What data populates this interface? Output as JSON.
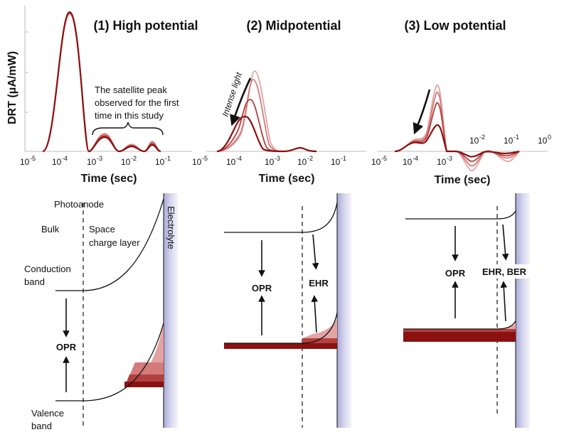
{
  "colors": {
    "dark": "#8b1010",
    "mid": "#b34040",
    "light": "#d47a7a",
    "lighter": "#e3a3a3",
    "electrolyte": "#b9b9dc",
    "ink": "#111111"
  },
  "panels": [
    {
      "title": "(1) High potential",
      "xlabel": "Time (sec)"
    },
    {
      "title": "(2) Midpotential",
      "xlabel": "Time (sec)"
    },
    {
      "title": "(3) Low potential",
      "xlabel": "Time (sec)"
    }
  ],
  "ylabel": "DRT (μA/mW)",
  "ticks": {
    "p1": [
      "-5",
      "-4",
      "-3",
      "-2",
      "-1"
    ],
    "p2": [
      "-5",
      "-4",
      "-3",
      "-2",
      "-1"
    ],
    "p3_low": [
      "-5",
      "-4",
      "-3"
    ],
    "p3_high": [
      "-2",
      "-1",
      "0"
    ]
  },
  "annotations": {
    "satellite_line1": "The satellite peak",
    "satellite_line2": "observed for the first",
    "satellite_line3": "time in this study",
    "intense_light": "Intense light"
  },
  "band_labels": {
    "photoanode": "Photoanode",
    "bulk": "Bulk",
    "space1": "Space",
    "space2": "charge layer",
    "conduction1": "Conduction",
    "conduction2": "band",
    "valence1": "Valence",
    "valence2": "band",
    "electrolyte": "Electrolyte",
    "opr": "OPR",
    "ehr": "EHR",
    "ehr_ber": "EHR, BER"
  },
  "chart_data": [
    {
      "type": "line",
      "title": "(1) High potential",
      "xlabel": "Time (sec)",
      "ylabel": "DRT (μA/mW)",
      "x_scale": "log",
      "xlim": [
        1e-05,
        0.1
      ],
      "series": [
        {
          "x": [
            0.0001,
            0.0002,
            0.00025,
            0.0003,
            0.0005,
            0.001,
            0.0015,
            0.002,
            0.003,
            0.005,
            0.008,
            0.01,
            0.015,
            0.02,
            0.03,
            0.05,
            0.07,
            0.1
          ],
          "y": [
            0,
            0.98,
            1.0,
            0.9,
            0.03,
            0.08,
            0.1,
            0.07,
            0.01,
            0.02,
            0.04,
            0.04,
            0.01,
            0.0,
            0.01,
            0.03,
            0.02,
            0
          ]
        },
        {
          "x": [
            0.0001,
            0.0002,
            0.00025,
            0.0003,
            0.0005,
            0.001,
            0.0015,
            0.002,
            0.003,
            0.005,
            0.008,
            0.01,
            0.015,
            0.02,
            0.03,
            0.05,
            0.07,
            0.1
          ],
          "y": [
            0,
            0.97,
            0.99,
            0.89,
            0.03,
            0.1,
            0.12,
            0.09,
            0.01,
            0.03,
            0.05,
            0.05,
            0.02,
            0.0,
            0.02,
            0.04,
            0.03,
            0
          ]
        },
        {
          "x": [
            0.0001,
            0.0002,
            0.00025,
            0.0003,
            0.0005,
            0.001,
            0.0015,
            0.002,
            0.003,
            0.005,
            0.008,
            0.01,
            0.015,
            0.02,
            0.03,
            0.05,
            0.07,
            0.1
          ],
          "y": [
            0,
            0.96,
            0.98,
            0.88,
            0.04,
            0.12,
            0.14,
            0.1,
            0.02,
            0.04,
            0.06,
            0.06,
            0.03,
            0.0,
            0.03,
            0.05,
            0.04,
            0
          ]
        },
        {
          "x": [
            0.0001,
            0.0002,
            0.00025,
            0.0003,
            0.0005,
            0.001,
            0.0015,
            0.002,
            0.003,
            0.005,
            0.008,
            0.01,
            0.015,
            0.02,
            0.03,
            0.05,
            0.07,
            0.1
          ],
          "y": [
            0,
            0.95,
            0.97,
            0.87,
            0.04,
            0.13,
            0.15,
            0.11,
            0.02,
            0.05,
            0.07,
            0.06,
            0.03,
            0.0,
            0.03,
            0.06,
            0.05,
            0
          ]
        }
      ]
    },
    {
      "type": "line",
      "title": "(2) Midpotential",
      "xlabel": "Time (sec)",
      "x_scale": "log",
      "xlim": [
        1e-05,
        0.1
      ],
      "series": [
        {
          "x": [
            5e-05,
            0.0001,
            0.0002,
            0.0003,
            0.0004,
            0.0006,
            0.001,
            0.002,
            0.005,
            0.01,
            0.02,
            0.05
          ],
          "y": [
            0,
            0.08,
            0.2,
            0.38,
            0.52,
            0.45,
            0.1,
            0.02,
            0.02,
            0.03,
            0.0,
            0
          ]
        },
        {
          "x": [
            5e-05,
            0.0001,
            0.0002,
            0.0003,
            0.0004,
            0.0006,
            0.001,
            0.002,
            0.005,
            0.01,
            0.02,
            0.05
          ],
          "y": [
            0,
            0.1,
            0.2,
            0.35,
            0.45,
            0.4,
            0.1,
            0.02,
            0.02,
            0.03,
            0.0,
            0
          ]
        },
        {
          "x": [
            5e-05,
            0.0001,
            0.0002,
            0.0003,
            0.0004,
            0.0006,
            0.001,
            0.002,
            0.005,
            0.01,
            0.02,
            0.05
          ],
          "y": [
            0,
            0.13,
            0.27,
            0.34,
            0.32,
            0.25,
            0.08,
            0.02,
            0.02,
            0.03,
            0.0,
            0
          ]
        },
        {
          "x": [
            5e-05,
            0.0001,
            0.0002,
            0.0003,
            0.0004,
            0.0006,
            0.001,
            0.002,
            0.005,
            0.01,
            0.02,
            0.05
          ],
          "y": [
            0,
            0.15,
            0.25,
            0.22,
            0.15,
            0.08,
            0.03,
            0.01,
            0.02,
            0.03,
            0.0,
            0
          ]
        }
      ]
    },
    {
      "type": "line",
      "title": "(3) Low potential",
      "xlabel": "Time (sec)",
      "x_scale": "log",
      "xlim": [
        1e-05,
        1
      ],
      "series": [
        {
          "x": [
            5e-05,
            0.0001,
            0.0002,
            0.0003,
            0.0005,
            0.0007,
            0.001,
            0.003,
            0.01,
            0.03,
            0.1,
            0.3,
            1
          ],
          "y": [
            0,
            0.05,
            0.12,
            0.26,
            0.44,
            0.42,
            0.05,
            0,
            -0.12,
            -0.22,
            -0.08,
            -0.14,
            0
          ]
        },
        {
          "x": [
            5e-05,
            0.0001,
            0.0002,
            0.0003,
            0.0005,
            0.0007,
            0.001,
            0.003,
            0.01,
            0.03,
            0.1,
            0.3,
            1
          ],
          "y": [
            0,
            0.06,
            0.12,
            0.23,
            0.38,
            0.35,
            0.05,
            0,
            -0.1,
            -0.18,
            -0.06,
            -0.1,
            0
          ]
        },
        {
          "x": [
            5e-05,
            0.0001,
            0.0002,
            0.0003,
            0.0005,
            0.0007,
            0.001,
            0.003,
            0.01,
            0.03,
            0.1,
            0.3,
            1
          ],
          "y": [
            0,
            0.07,
            0.11,
            0.2,
            0.3,
            0.27,
            0.04,
            0,
            -0.08,
            -0.12,
            -0.04,
            -0.06,
            0
          ]
        },
        {
          "x": [
            5e-05,
            0.0001,
            0.0002,
            0.0003,
            0.0005,
            0.0007,
            0.001,
            0.003,
            0.01,
            0.03,
            0.1,
            0.3,
            1
          ],
          "y": [
            0,
            0.08,
            0.1,
            0.13,
            0.18,
            0.16,
            0.03,
            0,
            -0.05,
            -0.07,
            -0.02,
            -0.03,
            0
          ]
        }
      ]
    }
  ]
}
